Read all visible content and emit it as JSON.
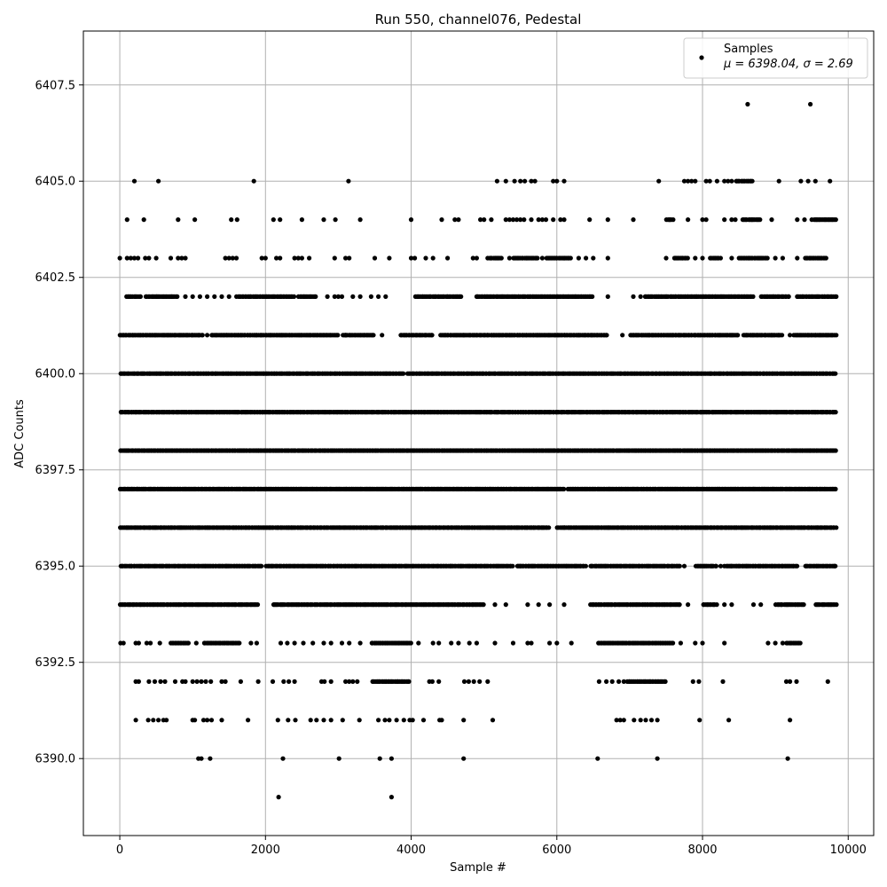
{
  "chart_data": {
    "type": "scatter",
    "title": "Run 550, channel076, Pedestal",
    "xlabel": "Sample #",
    "ylabel": "ADC Counts",
    "xlim": [
      -500,
      10350
    ],
    "ylim": [
      6388,
      6408.9
    ],
    "xticks": [
      "0",
      "2000",
      "4000",
      "6000",
      "8000",
      "10000"
    ],
    "yticks": [
      "6390.0",
      "6392.5",
      "6395.0",
      "6397.5",
      "6400.0",
      "6402.5",
      "6405.0",
      "6407.5"
    ],
    "xtick_values": [
      0,
      2000,
      4000,
      6000,
      8000,
      10000
    ],
    "ytick_values": [
      6390,
      6392.5,
      6395,
      6397.5,
      6400,
      6402.5,
      6405,
      6407.5
    ],
    "grid": true,
    "legend": {
      "placement": "top-right",
      "series_label": "Samples",
      "stats_label": "μ = 6398.04, σ = 2.69"
    },
    "point_color": "#000000",
    "num_samples": 9840,
    "levels": [
      {
        "y": 6389,
        "ranges": [],
        "x": [
          2180,
          3730
        ]
      },
      {
        "y": 6390,
        "ranges": [],
        "x": [
          1080,
          1120,
          1240,
          2240,
          3010,
          3570,
          3730,
          4720,
          6560,
          7380,
          9170
        ]
      },
      {
        "y": 6391,
        "ranges": [],
        "x": [
          220,
          390,
          460,
          530,
          600,
          640,
          1000,
          1030,
          1150,
          1200,
          1260,
          1400,
          1760,
          2170,
          2310,
          2410,
          2620,
          2700,
          2800,
          2900,
          3060,
          3290,
          3550,
          3640,
          3700,
          3800,
          3900,
          3980,
          4020,
          4170,
          4390,
          4420,
          4720,
          5120,
          6820,
          6870,
          6920,
          7060,
          7150,
          7220,
          7300,
          7380,
          7960,
          8360,
          9200
        ]
      },
      {
        "y": 6392,
        "ranges": [
          [
            3460,
            3980
          ],
          [
            6960,
            7500
          ]
        ],
        "x": [
          220,
          260,
          400,
          480,
          560,
          620,
          760,
          860,
          900,
          1000,
          1060,
          1120,
          1180,
          1250,
          1400,
          1450,
          1660,
          1900,
          2100,
          2250,
          2320,
          2400,
          2770,
          2810,
          2900,
          3100,
          3150,
          3200,
          3260,
          4250,
          4290,
          4380,
          4730,
          4790,
          4860,
          4940,
          5050,
          6580,
          6680,
          6760,
          6850,
          6920,
          7870,
          7950,
          8280,
          9150,
          9200,
          9290,
          9720
        ]
      },
      {
        "y": 6393,
        "ranges": [
          [
            700,
            950
          ],
          [
            1150,
            1650
          ],
          [
            3450,
            4000
          ],
          [
            6560,
            7600
          ],
          [
            9150,
            9350
          ]
        ],
        "x": [
          10,
          50,
          220,
          260,
          370,
          420,
          550,
          1050,
          1800,
          1880,
          2210,
          2300,
          2400,
          2520,
          2650,
          2800,
          2900,
          3050,
          3150,
          3300,
          4100,
          4300,
          4380,
          4550,
          4650,
          4800,
          4900,
          5150,
          5400,
          5600,
          5650,
          5900,
          6000,
          6200,
          7700,
          7900,
          8000,
          8300,
          8900,
          9000,
          9100
        ]
      },
      {
        "y": 6394,
        "ranges": [
          [
            0,
            1900
          ],
          [
            2100,
            5000
          ],
          [
            6450,
            7700
          ],
          [
            8000,
            8200
          ],
          [
            9000,
            9400
          ],
          [
            9550,
            9840
          ]
        ],
        "x": [
          5150,
          5300,
          5600,
          5750,
          5900,
          6100,
          7800,
          8300,
          8400,
          8700,
          8800
        ]
      },
      {
        "y": 6395,
        "ranges": [
          [
            0,
            1950
          ],
          [
            2000,
            5400
          ],
          [
            5450,
            6400
          ],
          [
            6450,
            7700
          ],
          [
            7900,
            8200
          ],
          [
            8300,
            9300
          ],
          [
            9400,
            9840
          ]
        ],
        "x": [
          5500,
          5650,
          7750,
          8250
        ]
      },
      {
        "y": 6396,
        "ranges": [
          [
            0,
            5900
          ],
          [
            6000,
            9840
          ]
        ],
        "x": []
      },
      {
        "y": 6397,
        "ranges": [
          [
            0,
            6100
          ],
          [
            6150,
            9840
          ]
        ],
        "x": []
      },
      {
        "y": 6398,
        "ranges": [
          [
            0,
            9840
          ]
        ],
        "x": []
      },
      {
        "y": 6399,
        "ranges": [
          [
            0,
            9840
          ]
        ],
        "x": []
      },
      {
        "y": 6400,
        "ranges": [
          [
            0,
            3900
          ],
          [
            3950,
            9840
          ]
        ],
        "x": []
      },
      {
        "y": 6401,
        "ranges": [
          [
            0,
            1150
          ],
          [
            1250,
            3000
          ],
          [
            3050,
            3500
          ],
          [
            3850,
            4300
          ],
          [
            4400,
            6700
          ],
          [
            7000,
            8500
          ],
          [
            8550,
            9100
          ],
          [
            9250,
            9840
          ]
        ],
        "x": [
          1200,
          3100,
          3600,
          6900,
          9200
        ]
      },
      {
        "y": 6402,
        "ranges": [
          [
            80,
            300
          ],
          [
            350,
            800
          ],
          [
            1600,
            2400
          ],
          [
            2450,
            2700
          ],
          [
            4050,
            4700
          ],
          [
            4900,
            6500
          ],
          [
            7200,
            8700
          ],
          [
            8800,
            9200
          ],
          [
            9300,
            9840
          ]
        ],
        "x": [
          500,
          900,
          1000,
          1100,
          1200,
          1300,
          1400,
          1500,
          2850,
          2950,
          3000,
          3050,
          3200,
          3300,
          3450,
          3550,
          3650,
          4900,
          6700,
          7050,
          7150,
          9300
        ]
      },
      {
        "y": 6403,
        "ranges": [
          [
            5050,
            5250
          ],
          [
            5400,
            5750
          ],
          [
            5850,
            6200
          ],
          [
            7600,
            7800
          ],
          [
            8100,
            8250
          ],
          [
            8500,
            8900
          ],
          [
            9400,
            9700
          ]
        ],
        "x": [
          0,
          100,
          150,
          200,
          250,
          350,
          400,
          500,
          700,
          800,
          850,
          900,
          1450,
          1500,
          1550,
          1600,
          1950,
          2000,
          2150,
          2200,
          2400,
          2450,
          2500,
          2600,
          2950,
          3100,
          3150,
          3500,
          3700,
          4000,
          4050,
          4200,
          4300,
          4500,
          4850,
          4900,
          5350,
          5800,
          6300,
          6400,
          6500,
          6700,
          7500,
          7900,
          8000,
          8400,
          9000,
          9100,
          9300
        ]
      },
      {
        "y": 6404,
        "ranges": [
          [
            7500,
            7600
          ],
          [
            8550,
            8800
          ],
          [
            9500,
            9840
          ]
        ],
        "x": [
          100,
          330,
          800,
          1030,
          1530,
          1610,
          2110,
          2200,
          2500,
          2800,
          2960,
          3300,
          4000,
          4420,
          4600,
          4650,
          4950,
          5000,
          5100,
          5300,
          5350,
          5400,
          5450,
          5500,
          5550,
          5650,
          5750,
          5800,
          5850,
          5950,
          6050,
          6100,
          6450,
          6700,
          7050,
          7800,
          8000,
          8050,
          8300,
          8400,
          8450,
          8950,
          9300,
          9400
        ]
      },
      {
        "y": 6405,
        "ranges": [
          [
            8450,
            8700
          ]
        ],
        "x": [
          200,
          530,
          1840,
          3140,
          5180,
          5300,
          5420,
          5500,
          5560,
          5650,
          5700,
          5950,
          6000,
          6100,
          7400,
          7750,
          7800,
          7850,
          7900,
          8050,
          8100,
          8200,
          8300,
          8350,
          8400,
          9050,
          9350,
          9450,
          9550,
          9750
        ]
      },
      {
        "y": 6407,
        "ranges": [],
        "x": [
          8620,
          9480
        ]
      }
    ]
  }
}
